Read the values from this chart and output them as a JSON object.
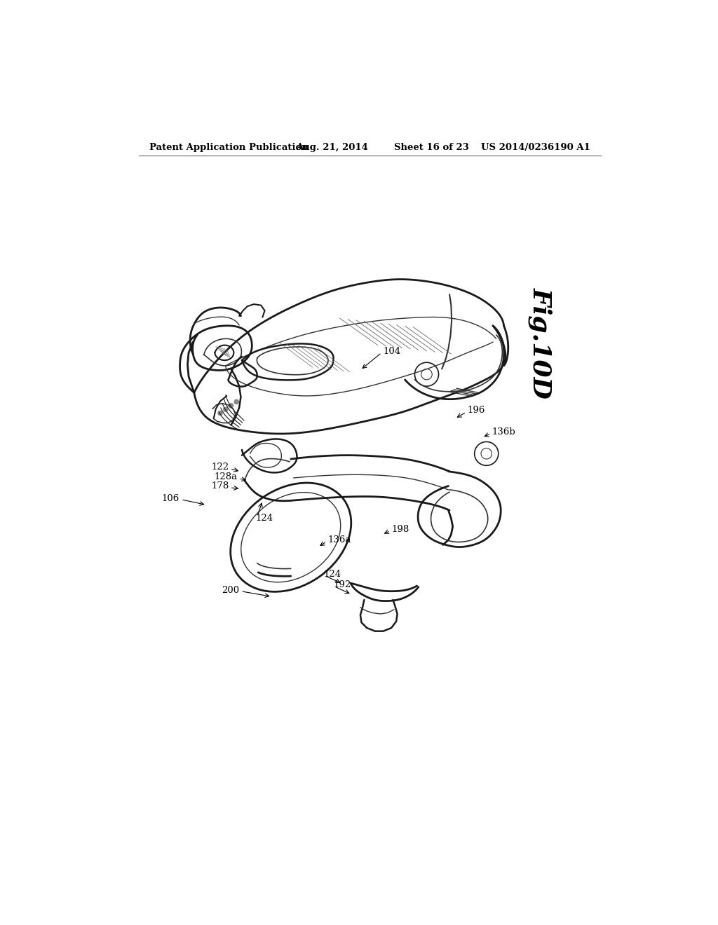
{
  "background_color": "#ffffff",
  "header_text": "Patent Application Publication",
  "header_date": "Aug. 21, 2014",
  "header_sheet": "Sheet 16 of 23",
  "header_patent": "US 2014/0236190 A1",
  "fig_label": "Fig.10D",
  "line_color": "#1a1a1a",
  "thin_color": "#333333",
  "hatch_color": "#666666"
}
